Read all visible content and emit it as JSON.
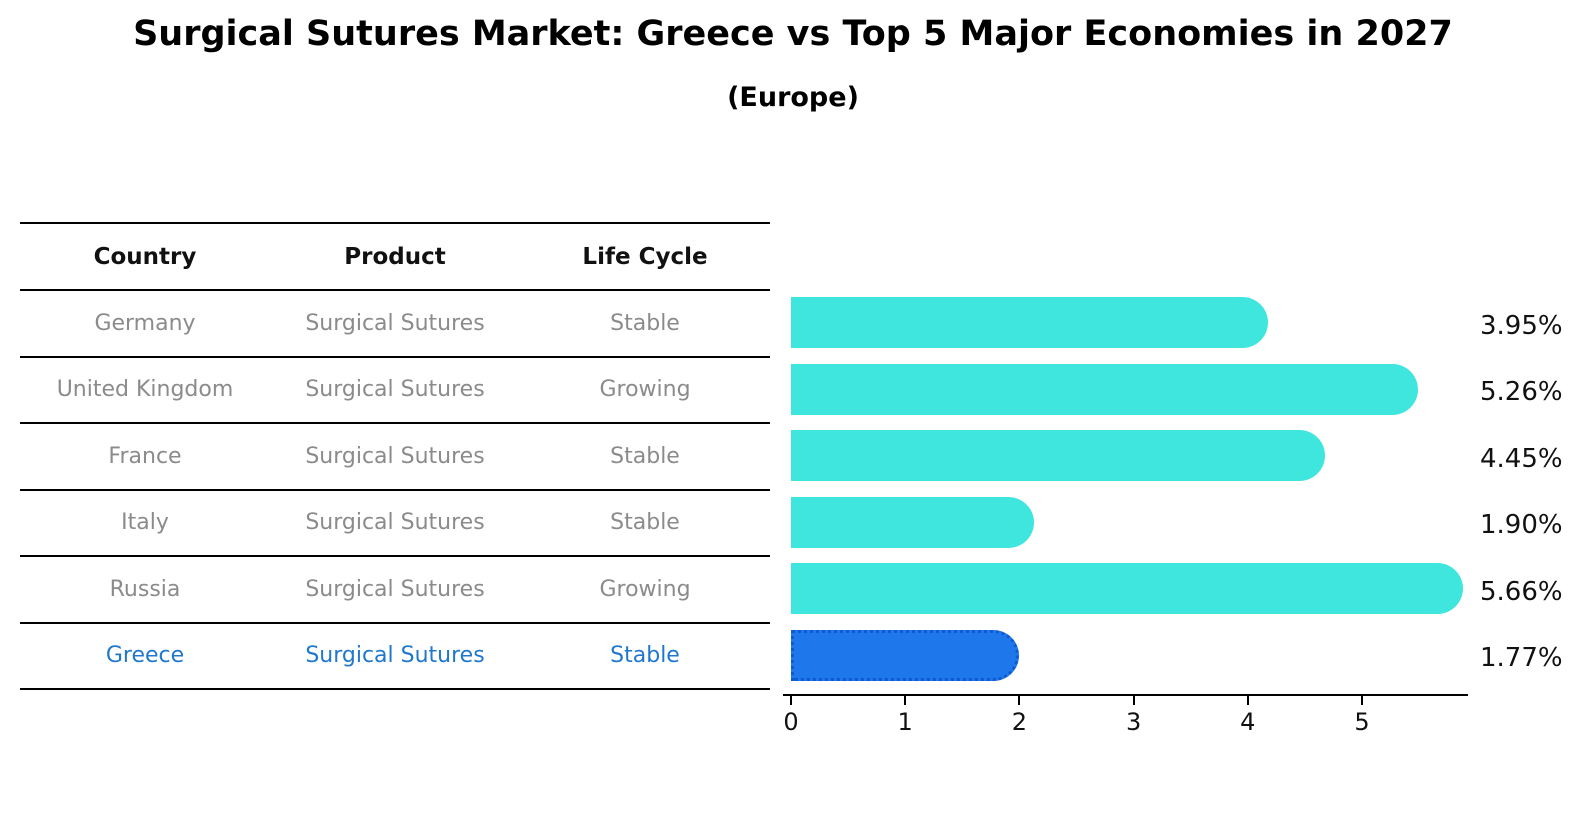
{
  "title": "Surgical Sutures Market: Greece vs Top 5 Major Economies in 2027",
  "subtitle": "(Europe)",
  "colors": {
    "bar_default": "#3EE6DE",
    "bar_highlight": "#1E78EB",
    "bar_highlight_border": "#0E5AD3",
    "highlight_text": "#1F78CE",
    "table_text": "#8B8B8B",
    "axis_text": "#111111"
  },
  "table": {
    "headers": [
      "Country",
      "Product",
      "Life Cycle"
    ],
    "rows": [
      {
        "country": "Germany",
        "product": "Surgical Sutures",
        "life_cycle": "Stable",
        "highlighted": false
      },
      {
        "country": "United Kingdom",
        "product": "Surgical Sutures",
        "life_cycle": "Growing",
        "highlighted": false
      },
      {
        "country": "France",
        "product": "Surgical Sutures",
        "life_cycle": "Stable",
        "highlighted": false
      },
      {
        "country": "Italy",
        "product": "Surgical Sutures",
        "life_cycle": "Stable",
        "highlighted": false
      },
      {
        "country": "Russia",
        "product": "Surgical Sutures",
        "life_cycle": "Growing",
        "highlighted": false
      },
      {
        "country": "Greece",
        "product": "Surgical Sutures",
        "life_cycle": "Stable",
        "highlighted": true
      }
    ]
  },
  "chart_data": {
    "type": "bar",
    "orientation": "horizontal",
    "title": "Surgical Sutures Market: Greece vs Top 5 Major Economies in 2027 (Europe)",
    "categories": [
      "Germany",
      "United Kingdom",
      "France",
      "Italy",
      "Russia",
      "Greece"
    ],
    "values": [
      3.95,
      5.26,
      4.45,
      1.9,
      5.66,
      1.77
    ],
    "value_labels": [
      "3.95%",
      "5.26%",
      "4.45%",
      "1.90%",
      "5.66%",
      "1.77%"
    ],
    "unit": "%",
    "highlight_index": 5,
    "xticks": [
      0,
      1,
      2,
      3,
      4,
      5
    ],
    "xlim": [
      0,
      5.94
    ],
    "grid": false,
    "legend": false
  }
}
